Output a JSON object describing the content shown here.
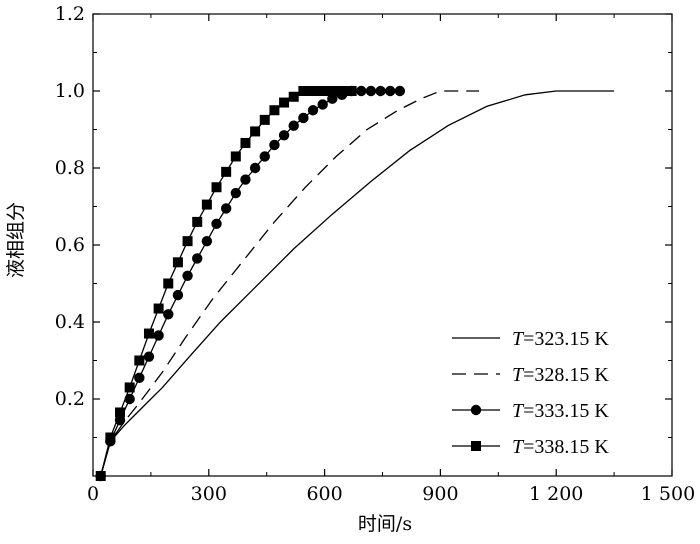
{
  "chart_data": {
    "type": "line",
    "title": "",
    "xlabel": "时间/s",
    "ylabel": "液相组分",
    "xlim": [
      0,
      1500
    ],
    "ylim": [
      0,
      1.2
    ],
    "x_ticks": [
      0,
      300,
      600,
      900,
      1200,
      1500
    ],
    "x_tick_labels": [
      "0",
      "300",
      "600",
      "900",
      "1 200",
      "1 500"
    ],
    "y_ticks": [
      0.2,
      0.4,
      0.6,
      0.8,
      1.0,
      1.2
    ],
    "y_tick_labels": [
      "0.2",
      "0.4",
      "0.6",
      "0.8",
      "1.0",
      "1.2"
    ],
    "legend_position": "bottom-right",
    "grid": false,
    "series": [
      {
        "name": "T=323.15 K",
        "name_italic": "T",
        "name_rest": "=323.15 K",
        "style": "solid",
        "marker": "none",
        "x": [
          20,
          45,
          80,
          120,
          180,
          250,
          330,
          420,
          520,
          620,
          720,
          820,
          920,
          1020,
          1120,
          1200,
          1240,
          1350
        ],
        "y": [
          0.0,
          0.09,
          0.13,
          0.17,
          0.23,
          0.31,
          0.4,
          0.49,
          0.59,
          0.68,
          0.765,
          0.845,
          0.91,
          0.96,
          0.99,
          1.0,
          1.0,
          1.0
        ]
      },
      {
        "name": "T=328.15 K",
        "name_italic": "T",
        "name_rest": "=328.15 K",
        "style": "dashed",
        "marker": "none",
        "x": [
          20,
          45,
          80,
          120,
          180,
          240,
          310,
          390,
          470,
          550,
          630,
          710,
          790,
          850,
          900,
          930,
          1000
        ],
        "y": [
          0.0,
          0.09,
          0.14,
          0.19,
          0.27,
          0.36,
          0.46,
          0.56,
          0.66,
          0.75,
          0.83,
          0.9,
          0.95,
          0.98,
          1.0,
          1.0,
          1.0
        ]
      },
      {
        "name": "T=333.15 K",
        "name_italic": "T",
        "name_rest": "=333.15 K",
        "style": "solid",
        "marker": "circle",
        "x": [
          20,
          45,
          70,
          95,
          120,
          145,
          170,
          195,
          220,
          245,
          270,
          295,
          320,
          345,
          370,
          395,
          420,
          445,
          470,
          495,
          520,
          545,
          570,
          595,
          620,
          645,
          670,
          695,
          720,
          745,
          770,
          795
        ],
        "y": [
          0.0,
          0.09,
          0.145,
          0.2,
          0.255,
          0.31,
          0.365,
          0.42,
          0.47,
          0.52,
          0.565,
          0.61,
          0.655,
          0.695,
          0.735,
          0.77,
          0.8,
          0.83,
          0.86,
          0.885,
          0.91,
          0.93,
          0.95,
          0.965,
          0.98,
          0.99,
          1.0,
          1.0,
          1.0,
          1.0,
          1.0,
          1.0
        ]
      },
      {
        "name": "T=338.15 K",
        "name_italic": "T",
        "name_rest": "=338.15 K",
        "style": "solid",
        "marker": "square",
        "x": [
          20,
          45,
          70,
          95,
          120,
          145,
          170,
          195,
          220,
          245,
          270,
          295,
          320,
          345,
          370,
          395,
          420,
          445,
          470,
          495,
          520,
          545,
          570,
          595,
          620,
          645,
          670
        ],
        "y": [
          0.0,
          0.1,
          0.165,
          0.23,
          0.3,
          0.37,
          0.435,
          0.5,
          0.555,
          0.61,
          0.66,
          0.705,
          0.75,
          0.79,
          0.83,
          0.865,
          0.895,
          0.925,
          0.95,
          0.97,
          0.985,
          1.0,
          1.0,
          1.0,
          1.0,
          1.0,
          1.0
        ]
      }
    ]
  }
}
